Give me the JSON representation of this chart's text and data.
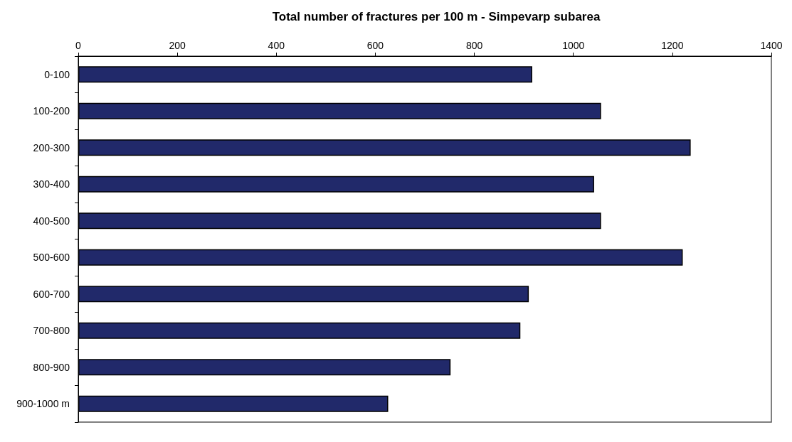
{
  "chart_data": {
    "type": "bar",
    "orientation": "horizontal",
    "title": "Total number of fractures per 100 m - Simpevarp subarea",
    "categories": [
      "0-100",
      "100-200",
      "200-300",
      "300-400",
      "400-500",
      "500-600",
      "600-700",
      "700-800",
      "800-900",
      "900-1000 m"
    ],
    "values": [
      917,
      1056,
      1237,
      1042,
      1056,
      1221,
      910,
      893,
      752,
      626
    ],
    "color": "#21296a",
    "xlim": [
      0,
      1400
    ],
    "xticks": [
      0,
      200,
      400,
      600,
      800,
      1000,
      1200,
      1400
    ],
    "grid": false
  }
}
